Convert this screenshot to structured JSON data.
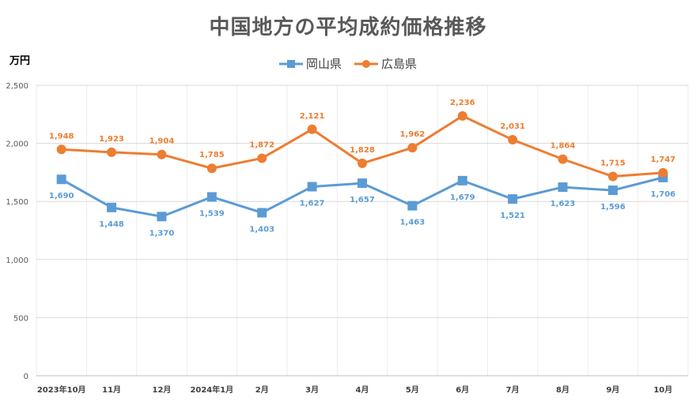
{
  "chart_data": {
    "type": "line",
    "title": "中国地方の平均成約価格推移",
    "ylabel": "万円",
    "ylim": [
      0,
      2500
    ],
    "yticks": [
      0,
      500,
      1000,
      1500,
      2000,
      2500
    ],
    "ytick_labels": [
      "0",
      "500",
      "1,000",
      "1,500",
      "2,000",
      "2,500"
    ],
    "grid": true,
    "legend_position": "top",
    "categories": [
      "2023年10月",
      "11月",
      "12月",
      "2024年1月",
      "2月",
      "3月",
      "4月",
      "5月",
      "6月",
      "7月",
      "8月",
      "9月",
      "10月"
    ],
    "series": [
      {
        "name": "岡山県",
        "color": "#5b9bd5",
        "marker": "square",
        "values": [
          1690,
          1448,
          1370,
          1539,
          1403,
          1627,
          1657,
          1463,
          1679,
          1521,
          1623,
          1596,
          1706
        ],
        "labels": [
          "1,690",
          "1,448",
          "1,370",
          "1,539",
          "1,403",
          "1,627",
          "1,657",
          "1,463",
          "1,679",
          "1,521",
          "1,623",
          "1,596",
          "1,706"
        ]
      },
      {
        "name": "広島県",
        "color": "#ed7d31",
        "marker": "circle",
        "values": [
          1948,
          1923,
          1904,
          1785,
          1872,
          2121,
          1828,
          1962,
          2236,
          2031,
          1864,
          1715,
          1747
        ],
        "labels": [
          "1,948",
          "1,923",
          "1,904",
          "1,785",
          "1,872",
          "2,121",
          "1,828",
          "1,962",
          "2,236",
          "2,031",
          "1,864",
          "1,715",
          "1,747"
        ]
      }
    ]
  }
}
